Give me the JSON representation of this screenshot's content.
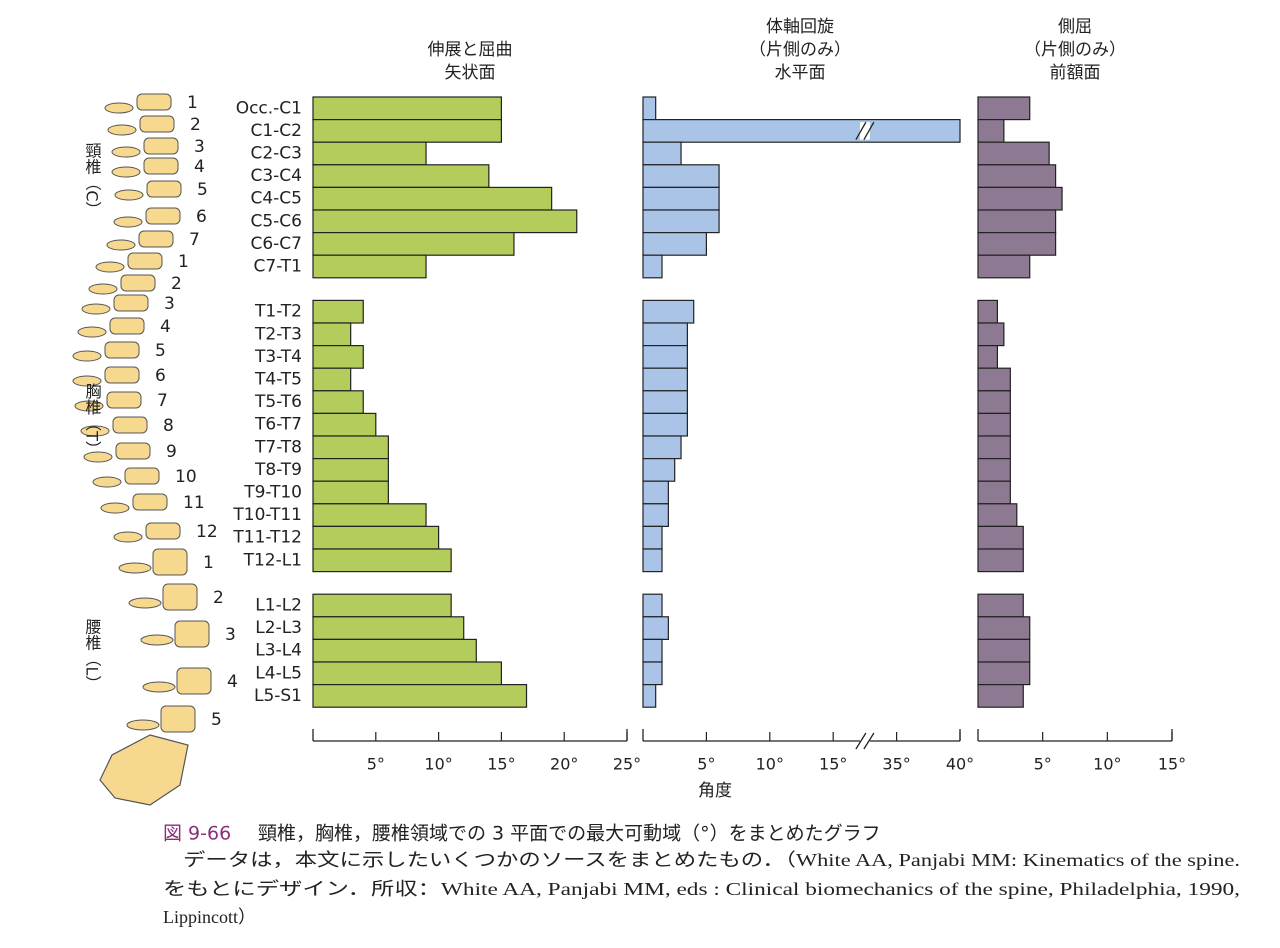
{
  "chart_data": {
    "type": "bar",
    "categories": [
      [
        "Occ.-C1",
        "C1-C2",
        "C2-C3",
        "C3-C4",
        "C4-C5",
        "C5-C6",
        "C6-C7",
        "C7-T1"
      ],
      [
        "T1-T2",
        "T2-T3",
        "T3-T4",
        "T4-T5",
        "T5-T6",
        "T6-T7",
        "T7-T8",
        "T8-T9",
        "T9-T10",
        "T10-T11",
        "T11-T12",
        "T12-L1"
      ],
      [
        "L1-L2",
        "L2-L3",
        "L3-L4",
        "L4-L5",
        "L5-S1"
      ]
    ],
    "x_label": "角度",
    "series": [
      {
        "name": [
          "伸展と屈曲",
          "矢状面"
        ],
        "color": "#b3cc5c",
        "xlim": [
          0,
          25
        ],
        "xticks": [
          {
            "value": 5,
            "label": "5°"
          },
          {
            "value": 10,
            "label": "10°"
          },
          {
            "value": 15,
            "label": "15°"
          },
          {
            "value": 20,
            "label": "20°"
          },
          {
            "value": 25,
            "label": "25°"
          }
        ],
        "values": [
          [
            15,
            15,
            9,
            14,
            19,
            21,
            16,
            9
          ],
          [
            4,
            3,
            4,
            3,
            4,
            5,
            6,
            6,
            6,
            9,
            10,
            11
          ],
          [
            11,
            12,
            13,
            15,
            17
          ]
        ]
      },
      {
        "name": [
          "体軸回旋",
          "（片側のみ）",
          "水平面"
        ],
        "color": "#a9c4e6",
        "xlim": [
          0,
          40
        ],
        "axis_break": true,
        "xticks": [
          {
            "value": 5,
            "label": "5°"
          },
          {
            "value": 10,
            "label": "10°"
          },
          {
            "value": 15,
            "label": "15°"
          },
          {
            "value": 35,
            "label": "35°"
          },
          {
            "value": 40,
            "label": "40°"
          }
        ],
        "values": [
          [
            1,
            40,
            3,
            6,
            6,
            6,
            5,
            1.5
          ],
          [
            4,
            3.5,
            3.5,
            3.5,
            3.5,
            3.5,
            3,
            2.5,
            2,
            2,
            1.5,
            1.5
          ],
          [
            1.5,
            2,
            1.5,
            1.5,
            1
          ]
        ]
      },
      {
        "name": [
          "側屈",
          "（片側のみ）",
          "前額面"
        ],
        "color": "#8d7a92",
        "xlim": [
          0,
          15
        ],
        "xticks": [
          {
            "value": 5,
            "label": "5°"
          },
          {
            "value": 10,
            "label": "10°"
          },
          {
            "value": 15,
            "label": "15°"
          }
        ],
        "values": [
          [
            4,
            2,
            5.5,
            6,
            6.5,
            6,
            6,
            4
          ],
          [
            1.5,
            2,
            1.5,
            2.5,
            2.5,
            2.5,
            2.5,
            2.5,
            2.5,
            3,
            3.5,
            3.5
          ],
          [
            3.5,
            4,
            4,
            4,
            3.5
          ]
        ]
      }
    ]
  },
  "spine": {
    "regions": [
      {
        "label": "頸椎（C）",
        "numbers": [
          1,
          2,
          3,
          4,
          5,
          6,
          7
        ]
      },
      {
        "label": "胸椎（T）",
        "numbers": [
          1,
          2,
          3,
          4,
          5,
          6,
          7,
          8,
          9,
          10,
          11,
          12
        ]
      },
      {
        "label": "腰椎（L）",
        "numbers": [
          1,
          2,
          3,
          4,
          5
        ]
      }
    ]
  },
  "caption": {
    "figure": "図 9-66",
    "title": "頸椎，胸椎，腰椎領域での 3 平面での最大可動域（°）をまとめたグラフ",
    "lines": [
      "データは，本文に示したいくつかのソースをまとめたもの．（White AA, Panjabi MM: Kinematics of the spine.",
      "をもとにデザイン．所収：White AA, Panjabi MM, eds : Clinical biomechanics of the spine, Philadelphia, 1990,",
      "Lippincott）"
    ]
  }
}
